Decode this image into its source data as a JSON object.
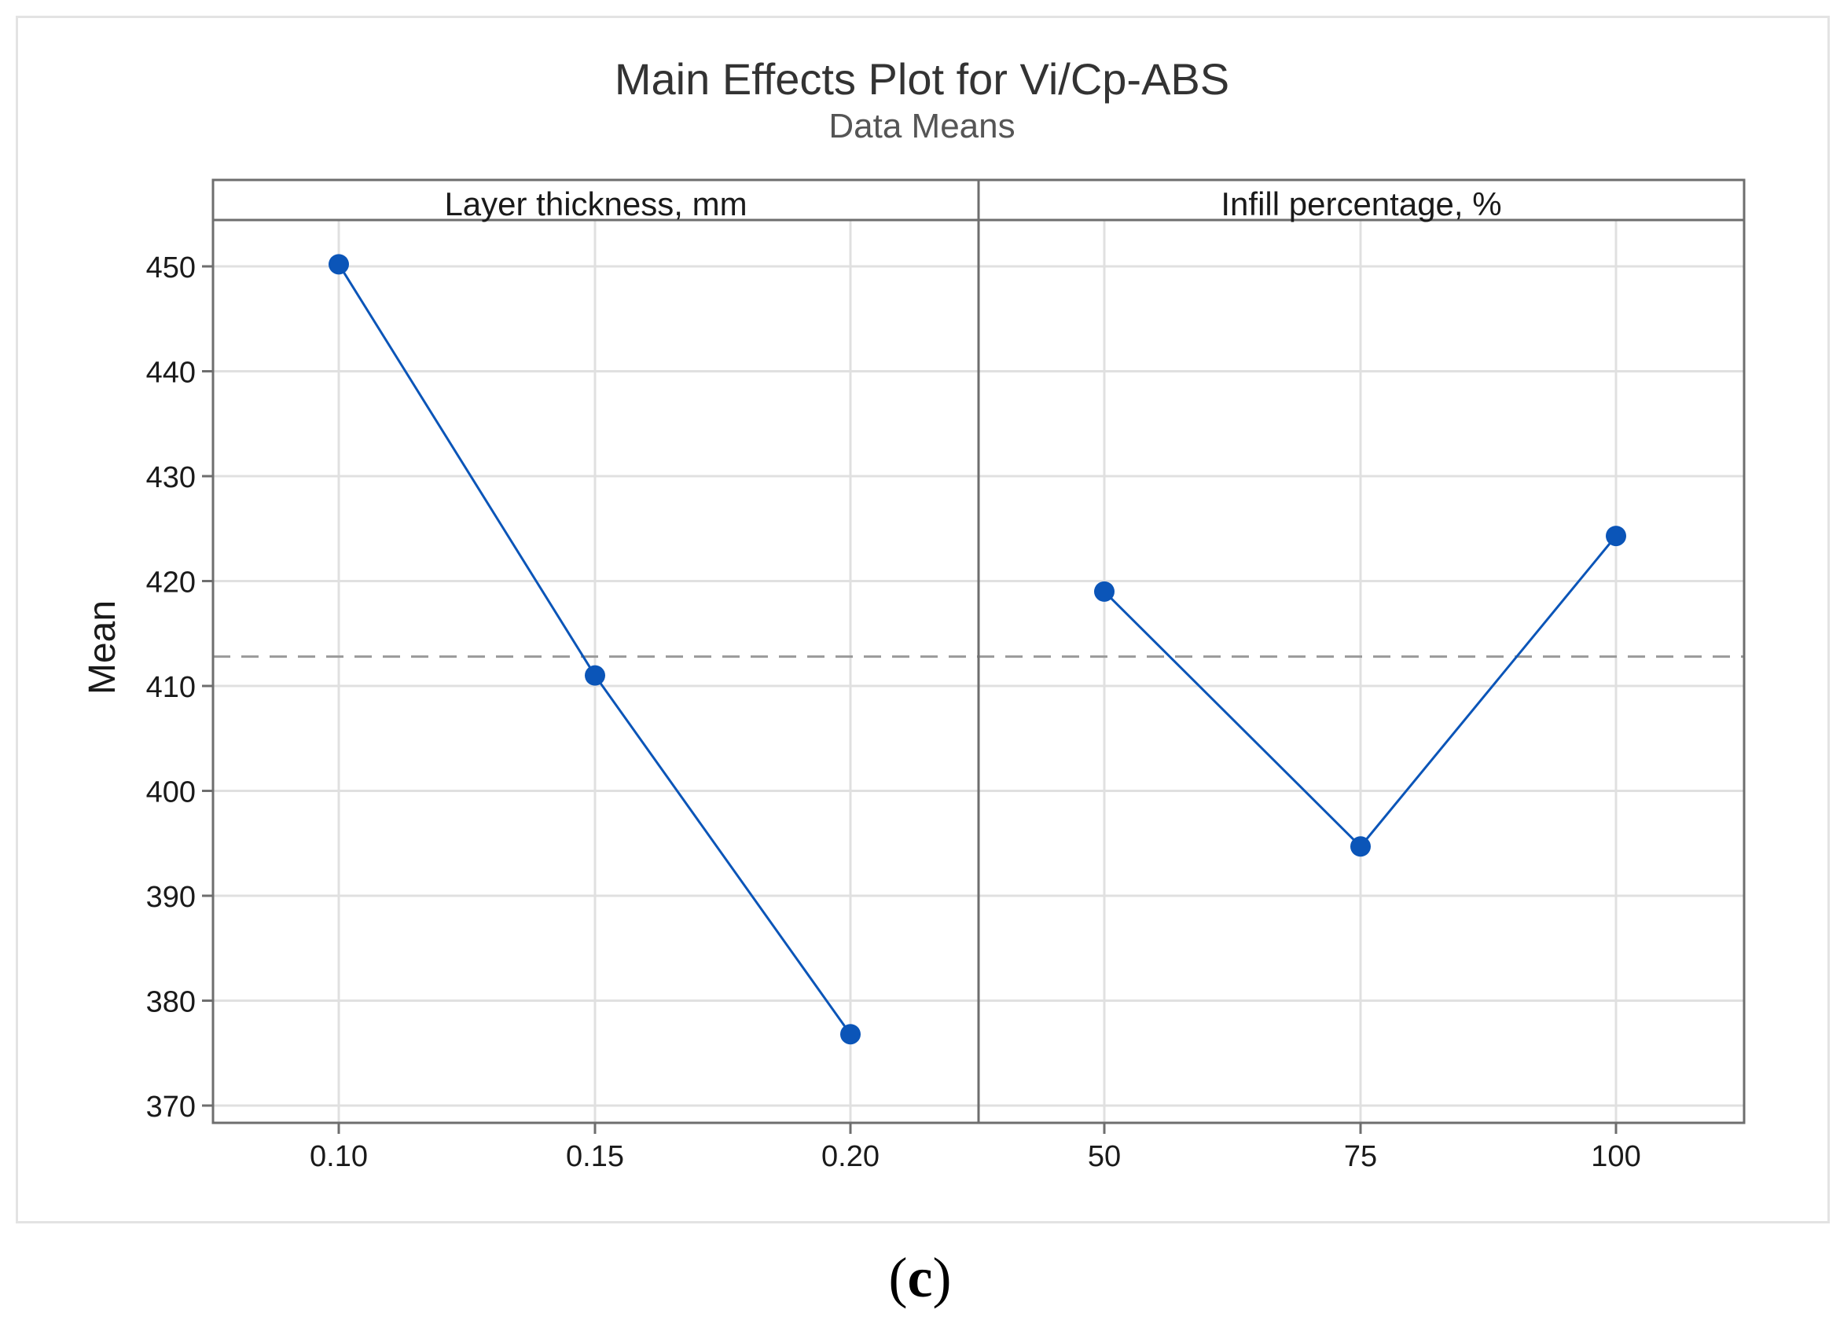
{
  "chart_data": {
    "type": "line",
    "title": "Main Effects Plot for Vi/Cp-ABS",
    "subtitle": "Data Means",
    "ylabel": "Mean",
    "ylim": [
      368,
      455
    ],
    "yticks": [
      370,
      380,
      390,
      400,
      410,
      420,
      430,
      440,
      450
    ],
    "grid": true,
    "reference_line": {
      "value": 412.8,
      "style": "dashed",
      "label": ""
    },
    "panels": [
      {
        "label": "Layer thickness, mm",
        "categories": [
          "0.10",
          "0.15",
          "0.20"
        ],
        "values": [
          450.2,
          411.0,
          376.8
        ]
      },
      {
        "label": "Infill percentage, %",
        "categories": [
          "50",
          "75",
          "100"
        ],
        "values": [
          419.0,
          394.7,
          424.3
        ]
      }
    ],
    "colors": {
      "series": "#0b55b8",
      "grid": "#e0e0e0",
      "frame": "#6e6e6e",
      "reference": "#9a9a9a",
      "text": "#1a1a1a",
      "subtitle": "#555555"
    }
  },
  "caption": {
    "open": "(",
    "letter": "c",
    "close": ")"
  }
}
